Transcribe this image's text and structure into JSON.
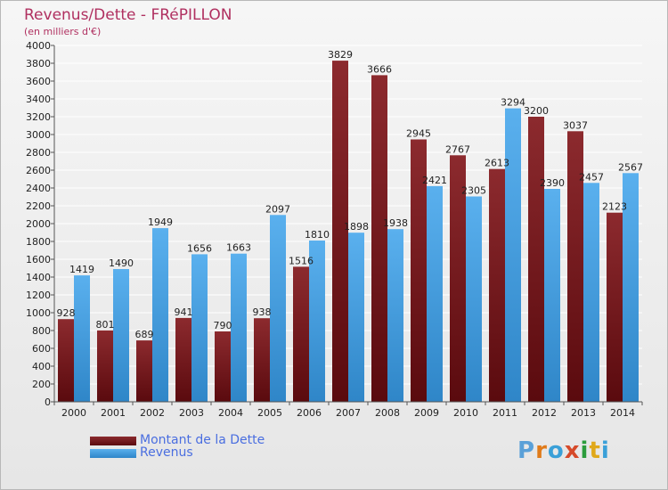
{
  "header": {
    "title": "Revenus/Dette - FRéPILLON",
    "subtitle": "(en milliers d'€)"
  },
  "colors": {
    "dette": "#7a1e22",
    "revenus": "#4ea6e6",
    "title": "#b03060",
    "legend_text": "#4a6ee0"
  },
  "legend": {
    "dette_label": "Montant de la Dette",
    "revenus_label": "Revenus"
  },
  "logo": {
    "text": "Proxiti",
    "letter_colors": [
      "#5aa0d8",
      "#e07b1a",
      "#3aa0d8",
      "#d64a2a",
      "#2c9c3c",
      "#e0a81a",
      "#3aa0d8"
    ]
  },
  "chart_data": {
    "type": "bar",
    "categories": [
      "2000",
      "2001",
      "2002",
      "2003",
      "2004",
      "2005",
      "2006",
      "2007",
      "2008",
      "2009",
      "2010",
      "2011",
      "2012",
      "2013",
      "2014"
    ],
    "series": [
      {
        "name": "Montant de la Dette",
        "values": [
          928,
          801,
          689,
          941,
          790,
          938,
          1516,
          3829,
          3666,
          2945,
          2767,
          2613,
          3200,
          3037,
          2123
        ]
      },
      {
        "name": "Revenus",
        "values": [
          1419,
          1490,
          1949,
          1656,
          1663,
          2097,
          1810,
          1898,
          1938,
          2421,
          2305,
          3294,
          2390,
          2457,
          2567
        ]
      }
    ],
    "ylim": [
      0,
      4000
    ],
    "ytick_step": 200,
    "grid": true,
    "legend_position": "bottom-left"
  }
}
